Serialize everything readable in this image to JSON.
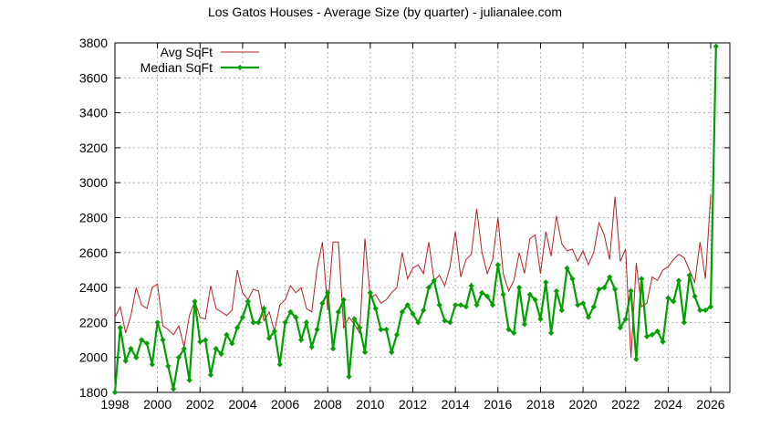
{
  "chart_data": {
    "type": "line",
    "title": "Los Gatos Houses - Average Size (by quarter) - julianalee.com",
    "xlabel": "",
    "ylabel": "",
    "xlim": [
      1998,
      2026.9
    ],
    "ylim": [
      1800,
      3800
    ],
    "grid": true,
    "legend_position": "top-left",
    "x_ticks": [
      1998,
      2000,
      2002,
      2004,
      2006,
      2008,
      2010,
      2012,
      2014,
      2016,
      2018,
      2020,
      2022,
      2024,
      2026
    ],
    "y_ticks": [
      1800,
      2000,
      2200,
      2400,
      2600,
      2800,
      3000,
      3200,
      3400,
      3600,
      3800
    ],
    "x_start": 1998,
    "x_step": 0.25,
    "series": [
      {
        "name": "Avg SqFt",
        "color": "#b22222",
        "markers": false,
        "values": [
          2230,
          2290,
          2140,
          2240,
          2400,
          2300,
          2280,
          2400,
          2420,
          2180,
          2160,
          2130,
          2180,
          2060,
          2240,
          2320,
          2230,
          2220,
          2410,
          2280,
          2260,
          2240,
          2270,
          2500,
          2370,
          2330,
          2390,
          2380,
          2210,
          2260,
          2150,
          2300,
          2330,
          2410,
          2370,
          2400,
          2280,
          2260,
          2510,
          2660,
          2270,
          2660,
          2660,
          2170,
          2230,
          2190,
          2140,
          2680,
          2340,
          2360,
          2310,
          2330,
          2370,
          2400,
          2600,
          2450,
          2510,
          2530,
          2480,
          2660,
          2440,
          2470,
          2410,
          2520,
          2720,
          2460,
          2560,
          2590,
          2850,
          2600,
          2480,
          2560,
          2800,
          2480,
          2380,
          2440,
          2600,
          2480,
          2680,
          2700,
          2480,
          2720,
          2580,
          2810,
          2650,
          2610,
          2620,
          2550,
          2610,
          2530,
          2600,
          2770,
          2700,
          2560,
          2920,
          2550,
          2620,
          2000,
          2540,
          2290,
          2310,
          2460,
          2440,
          2500,
          2520,
          2560,
          2590,
          2570,
          2500,
          2430,
          2660,
          2450,
          2930
        ]
      },
      {
        "name": "Median SqFt",
        "color": "#00a000",
        "markers": true,
        "values": [
          1800,
          2170,
          1980,
          2050,
          2000,
          2100,
          2080,
          1960,
          2200,
          2100,
          1950,
          1820,
          2000,
          2050,
          1870,
          2320,
          2090,
          2100,
          1900,
          2050,
          2020,
          2130,
          2080,
          2170,
          2230,
          2320,
          2200,
          2200,
          2280,
          2110,
          2150,
          1960,
          2200,
          2260,
          2230,
          2100,
          2200,
          2060,
          2160,
          2310,
          2370,
          2050,
          2260,
          2330,
          1890,
          2220,
          2170,
          2030,
          2370,
          2280,
          2160,
          2160,
          2030,
          2130,
          2260,
          2300,
          2250,
          2200,
          2270,
          2400,
          2440,
          2300,
          2210,
          2200,
          2300,
          2300,
          2290,
          2410,
          2300,
          2370,
          2350,
          2300,
          2530,
          2360,
          2160,
          2140,
          2400,
          2190,
          2360,
          2330,
          2220,
          2430,
          2140,
          2380,
          2270,
          2510,
          2450,
          2300,
          2310,
          2230,
          2290,
          2390,
          2400,
          2460,
          2390,
          2170,
          2220,
          2380,
          1990,
          2450,
          2120,
          2130,
          2150,
          2090,
          2340,
          2320,
          2440,
          2200,
          2470,
          2350,
          2270,
          2270,
          2290,
          3780
        ]
      }
    ]
  }
}
